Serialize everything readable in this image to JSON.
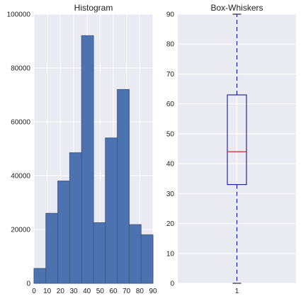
{
  "colors": {
    "axes_bg": "#eaeaf2",
    "grid": "#ffffff",
    "bar_fill": "#4c72b0",
    "bar_edge": "#3a5a8c",
    "box_edge": "#00008b",
    "whisker": "#0000cd",
    "median": "#d62728"
  },
  "chart_data": [
    {
      "type": "bar",
      "subtype": "histogram",
      "title": "Histogram",
      "xlabel": "",
      "ylabel": "",
      "bin_edges": [
        0,
        9,
        18,
        27,
        36,
        45,
        54,
        63,
        72,
        81,
        90
      ],
      "values": [
        5500,
        26000,
        38000,
        48500,
        92000,
        22500,
        54000,
        72000,
        21800,
        18000
      ],
      "xlim": [
        0,
        90
      ],
      "ylim": [
        0,
        100000
      ],
      "xticks": [
        0,
        10,
        20,
        30,
        40,
        50,
        60,
        70,
        80,
        90
      ],
      "yticks": [
        0,
        20000,
        40000,
        60000,
        80000,
        100000
      ],
      "grid": true
    },
    {
      "type": "box",
      "title": "Box-Whiskers",
      "xlabel": "",
      "ylabel": "",
      "categories": [
        "1"
      ],
      "whisker_low": 0,
      "q1": 33,
      "median": 44,
      "q3": 63,
      "whisker_high": 90,
      "ylim": [
        0,
        90
      ],
      "yticks": [
        0,
        10,
        20,
        30,
        40,
        50,
        60,
        70,
        80,
        90
      ],
      "grid": true
    }
  ]
}
